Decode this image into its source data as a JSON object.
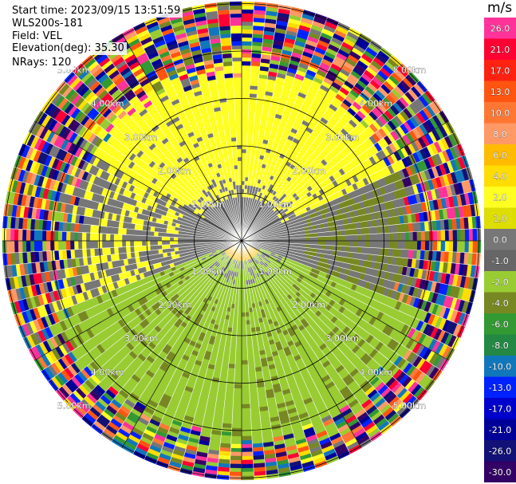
{
  "header": {
    "start_time": "Start time: 2023/09/15 13:51:59",
    "instrument": "WLS200s-181",
    "field": "Field: VEL",
    "elevation": "Elevation(deg): 35.30",
    "nrays": "NRays: 120"
  },
  "colorbar": {
    "units": "m/s",
    "labels": [
      "26.0",
      "21.0",
      "17.0",
      "13.0",
      "10.0",
      "8.0",
      "6.0",
      "4.0",
      "2.0",
      "1.0",
      "0.0",
      "-1.0",
      "-2.0",
      "-4.0",
      "-6.0",
      "-8.0",
      "-10.0",
      "-13.0",
      "-17.0",
      "-21.0",
      "-26.0",
      "-30.0"
    ],
    "colors": [
      "#ff3399",
      "#ff0033",
      "#ff2211",
      "#ff5511",
      "#ff7733",
      "#ff9966",
      "#ffbb00",
      "#ffdd00",
      "#ffff22",
      "#dddd00",
      "#777777",
      "#666666",
      "#99cc33",
      "#778822",
      "#339933",
      "#228844",
      "#1177bb",
      "#0022ff",
      "#0000cc",
      "#000099",
      "#111177",
      "#330066"
    ]
  },
  "chart_data": {
    "type": "heatmap",
    "subtype": "polar-ppi",
    "nrays": 120,
    "range_rings_km": [
      1.0,
      2.0,
      3.0,
      4.0,
      5.0
    ],
    "ring_labels": [
      "1.00km",
      "2.00km",
      "3.00km",
      "4.00km",
      "5.00km"
    ],
    "radial_lines_deg": [
      0,
      30,
      60,
      90,
      120,
      150,
      180,
      210,
      240,
      270,
      300,
      330
    ],
    "field": "VEL",
    "units": "m/s",
    "value_range": [
      -30.0,
      26.0
    ],
    "pattern": {
      "north_sector": "positive ~2.0 m/s (yellow) up to ~3.5 km",
      "south_sector": "negative ~-2.0 to -4.0 m/s (green) up to ~4 km",
      "near_zero_bands": "~0.0 m/s (grey) along east-west and near center",
      "far_range": "noise of all values beyond ~4.2 km"
    }
  }
}
